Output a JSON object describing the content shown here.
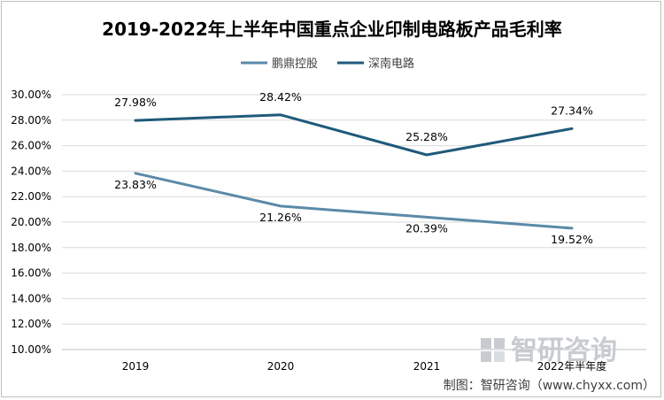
{
  "chart_data": {
    "type": "line",
    "title": "2019-2022年上半年中国重点企业印制电路板产品毛利率",
    "categories": [
      "2019",
      "2020",
      "2021",
      "2022年半年度"
    ],
    "series": [
      {
        "name": "鹏鼎控股",
        "values": [
          23.83,
          21.26,
          20.39,
          19.52
        ],
        "labels": [
          "23.83%",
          "21.26%",
          "20.39%",
          "19.52%"
        ],
        "color": "#5b8aa8"
      },
      {
        "name": "深南电路",
        "values": [
          27.98,
          28.42,
          25.28,
          27.34
        ],
        "labels": [
          "27.98%",
          "28.42%",
          "25.28%",
          "27.34%"
        ],
        "color": "#1f5a7a"
      }
    ],
    "ylim": [
      10,
      30
    ],
    "yticks": [
      "10.00%",
      "12.00%",
      "14.00%",
      "16.00%",
      "18.00%",
      "20.00%",
      "22.00%",
      "24.00%",
      "26.00%",
      "28.00%",
      "30.00%"
    ],
    "grid": true,
    "legend_position": "top-center"
  },
  "watermark": {
    "text": "智研咨询"
  },
  "credit": "制图：智研咨询（www.chyxx.com）"
}
